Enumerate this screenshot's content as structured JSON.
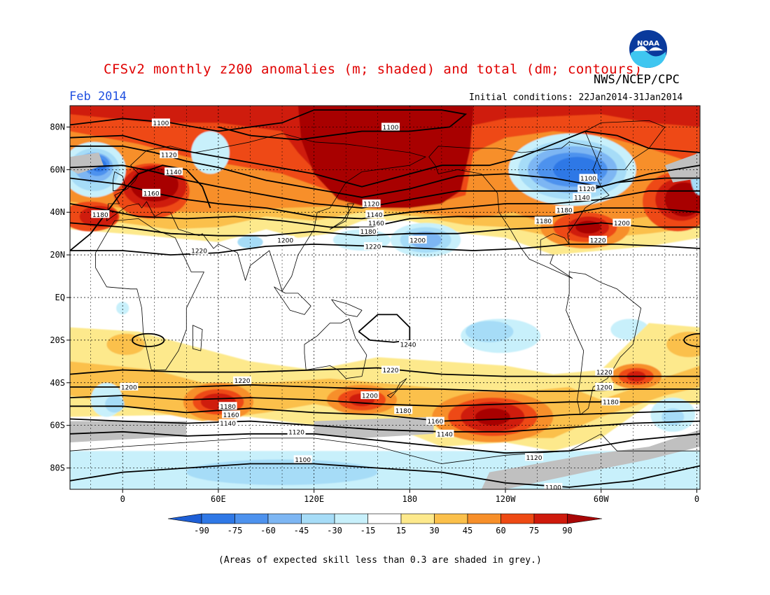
{
  "header": {
    "title": "CFSv2 monthly z200 anomalies (m; shaded) and total (dm; contours)",
    "agency": "NWS/NCEP/CPC",
    "month": "Feb 2014",
    "initial_conditions": "Initial conditions: 22Jan2014-31Jan2014",
    "logo_text": "NOAA"
  },
  "footnote": "(Areas of expected skill less than 0.3 are shaded in grey.)",
  "colors": {
    "neg90": "#1e5fd6",
    "neg75": "#2f78e6",
    "neg60": "#4d92ee",
    "neg45": "#7db6f3",
    "neg30": "#a6dcf7",
    "neg15": "#c8f0fb",
    "neutral": "#ffffff",
    "pos15": "#fde98c",
    "pos30": "#fbc04b",
    "pos45": "#f78f2a",
    "pos60": "#ee4a14",
    "pos75": "#cf1a0c",
    "pos90": "#a80606",
    "low_skill": "#c0c0c0"
  },
  "chart_data": {
    "type": "heatmap",
    "title": "CFSv2 monthly z200 anomalies (m; shaded) and total (dm; contours)",
    "projection": "cylindrical equidistant",
    "x_ticks": [
      "0",
      "60E",
      "120E",
      "180",
      "120W",
      "60W",
      "0"
    ],
    "x_tick_lon": [
      0,
      60,
      120,
      180,
      240,
      300,
      360
    ],
    "y_ticks": [
      "80N",
      "60N",
      "40N",
      "20N",
      "EQ",
      "20S",
      "40S",
      "60S",
      "80S"
    ],
    "y_tick_lat": [
      80,
      60,
      40,
      20,
      0,
      -20,
      -40,
      -60,
      -80
    ],
    "xlim": [
      -33,
      362
    ],
    "ylim": [
      -90,
      90
    ],
    "colorbar": {
      "ticks": [
        "-90",
        "-75",
        "-60",
        "-45",
        "-30",
        "-15",
        "15",
        "30",
        "45",
        "60",
        "75",
        "90"
      ],
      "levels": [
        -90,
        -75,
        -60,
        -45,
        -30,
        -15,
        15,
        30,
        45,
        60,
        75,
        90
      ]
    },
    "anomaly_blobs_m": [
      {
        "lon": 150,
        "lat": 70,
        "value": 90
      },
      {
        "lon": 10,
        "lat": 52,
        "value": 85
      },
      {
        "lon": 345,
        "lat": 45,
        "value": 90
      },
      {
        "lon": 290,
        "lat": 30,
        "value": 80
      },
      {
        "lon": 235,
        "lat": -55,
        "value": 90
      },
      {
        "lon": 60,
        "lat": -50,
        "value": 75
      },
      {
        "lon": 150,
        "lat": -50,
        "value": 70
      },
      {
        "lon": 322,
        "lat": -37,
        "value": 65
      },
      {
        "lon": 280,
        "lat": 60,
        "value": -80
      },
      {
        "lon": -15,
        "lat": 60,
        "value": -75
      },
      {
        "lon": 190,
        "lat": 28,
        "value": -45
      },
      {
        "lon": 100,
        "lat": -82,
        "value": -30
      }
    ],
    "contour_levels_dm": [
      1100,
      1120,
      1140,
      1160,
      1180,
      1200,
      1220,
      1240
    ],
    "contour_labels": [
      {
        "text": "1100",
        "lon": 168,
        "lat": 80
      },
      {
        "text": "1100",
        "lon": 24,
        "lat": 82
      },
      {
        "text": "1120",
        "lon": 29,
        "lat": 67
      },
      {
        "text": "1140",
        "lon": 32,
        "lat": 59
      },
      {
        "text": "1160",
        "lon": 18,
        "lat": 49
      },
      {
        "text": "1180",
        "lon": -14,
        "lat": 39
      },
      {
        "text": "1200",
        "lon": 102,
        "lat": 27
      },
      {
        "text": "1220",
        "lon": 48,
        "lat": 22
      },
      {
        "text": "1120",
        "lon": 156,
        "lat": 44
      },
      {
        "text": "1140",
        "lon": 158,
        "lat": 39
      },
      {
        "text": "1160",
        "lon": 159,
        "lat": 35
      },
      {
        "text": "1180",
        "lon": 154,
        "lat": 31
      },
      {
        "text": "1220",
        "lon": 157,
        "lat": 24
      },
      {
        "text": "1200",
        "lon": 185,
        "lat": 27
      },
      {
        "text": "1100",
        "lon": 292,
        "lat": 56
      },
      {
        "text": "1120",
        "lon": 291,
        "lat": 51
      },
      {
        "text": "1140",
        "lon": 288,
        "lat": 47
      },
      {
        "text": "1180",
        "lon": 277,
        "lat": 41
      },
      {
        "text": "1180",
        "lon": 264,
        "lat": 36
      },
      {
        "text": "1200",
        "lon": 313,
        "lat": 35
      },
      {
        "text": "1220",
        "lon": 298,
        "lat": 27
      },
      {
        "text": "1240",
        "lon": 179,
        "lat": -22
      },
      {
        "text": "1220",
        "lon": 168,
        "lat": -34
      },
      {
        "text": "1200",
        "lon": 155,
        "lat": -46
      },
      {
        "text": "1180",
        "lon": 176,
        "lat": -53
      },
      {
        "text": "1160",
        "lon": 196,
        "lat": -58
      },
      {
        "text": "1140",
        "lon": 202,
        "lat": -64
      },
      {
        "text": "1120",
        "lon": 258,
        "lat": -75
      },
      {
        "text": "1100",
        "lon": 270,
        "lat": -89
      },
      {
        "text": "1220",
        "lon": 75,
        "lat": -39
      },
      {
        "text": "1200",
        "lon": 4,
        "lat": -42
      },
      {
        "text": "1180",
        "lon": 66,
        "lat": -51
      },
      {
        "text": "1160",
        "lon": 68,
        "lat": -55
      },
      {
        "text": "1140",
        "lon": 66,
        "lat": -59
      },
      {
        "text": "1120",
        "lon": 109,
        "lat": -63
      },
      {
        "text": "1100",
        "lon": 113,
        "lat": -76
      },
      {
        "text": "1220",
        "lon": 302,
        "lat": -35
      },
      {
        "text": "1200",
        "lon": 302,
        "lat": -42
      },
      {
        "text": "1180",
        "lon": 306,
        "lat": -49
      }
    ],
    "grid": true,
    "grid_style": "dashed",
    "low_skill_shading": "grey"
  }
}
